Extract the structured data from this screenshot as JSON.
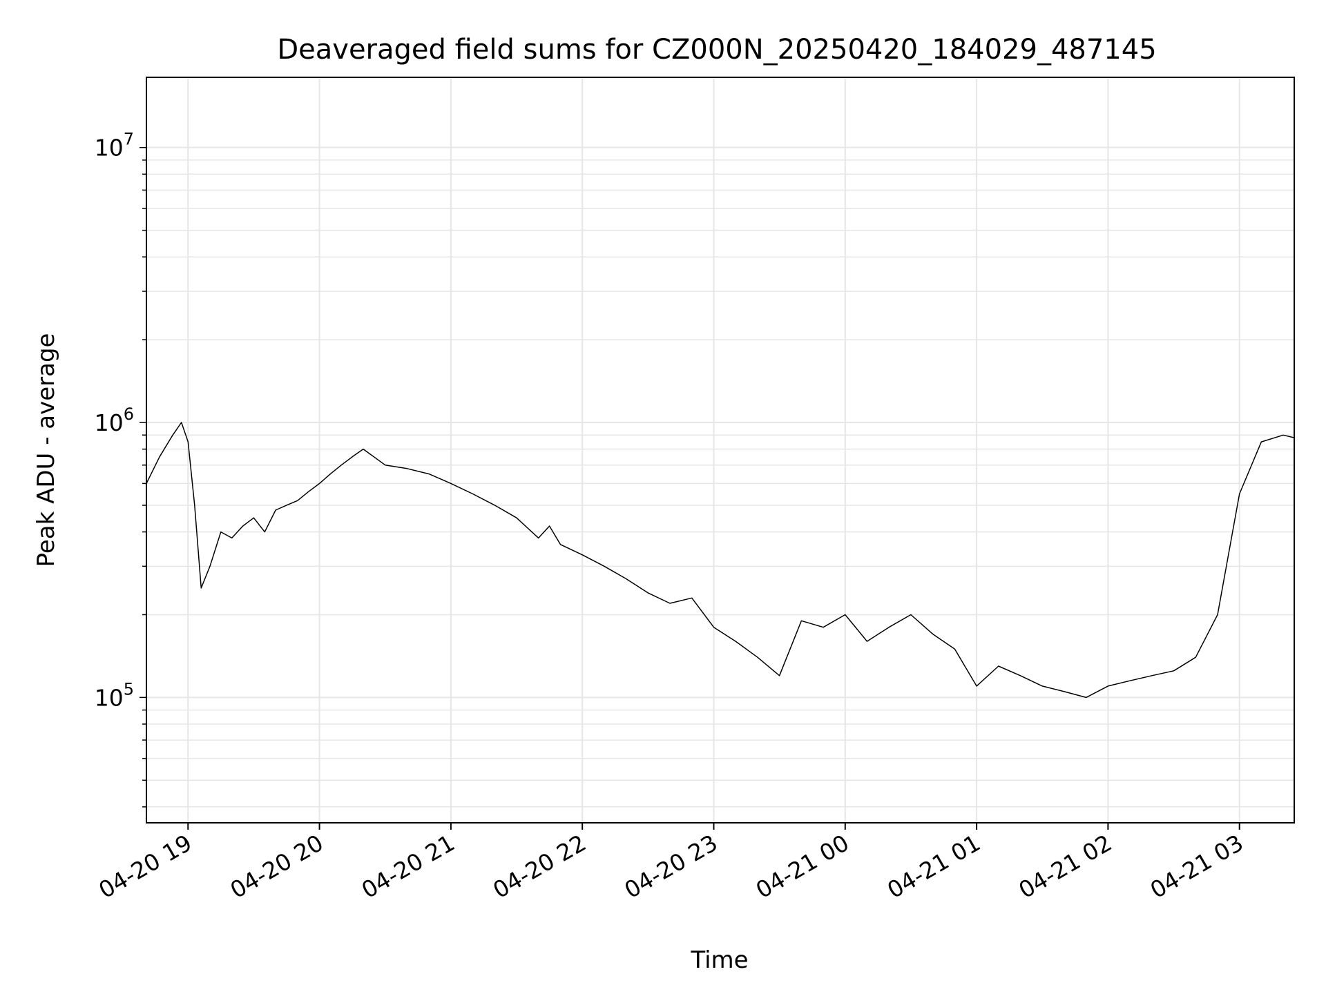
{
  "chart_data": {
    "type": "line",
    "title": "Deaveraged field sums for CZ000N_20250420_184029_487145",
    "xlabel": "Time",
    "ylabel": "Peak ADU - average",
    "y_scale": "log",
    "ylim": [
      35000,
      18000000
    ],
    "xlim": [
      "04-20 18:41",
      "04-21 03:25"
    ],
    "x_ticks": [
      "04-20 19",
      "04-20 20",
      "04-20 21",
      "04-20 22",
      "04-20 23",
      "04-21 00",
      "04-21 01",
      "04-21 02",
      "04-21 03"
    ],
    "y_ticks": [
      {
        "base": "10",
        "exp": "5",
        "value": 100000
      },
      {
        "base": "10",
        "exp": "6",
        "value": 1000000
      },
      {
        "base": "10",
        "exp": "7",
        "value": 10000000
      }
    ],
    "grid": true,
    "line_color": "#000000",
    "series": [
      {
        "x": [
          "04-20 18:41",
          "04-20 18:47",
          "04-20 18:53",
          "04-20 18:57",
          "04-20 19:00",
          "04-20 19:03",
          "04-20 19:06",
          "04-20 19:10",
          "04-20 19:15",
          "04-20 19:20",
          "04-20 19:25",
          "04-20 19:30",
          "04-20 19:35",
          "04-20 19:40",
          "04-20 19:45",
          "04-20 19:50",
          "04-20 19:55",
          "04-20 20:00",
          "04-20 20:05",
          "04-20 20:10",
          "04-20 20:15",
          "04-20 20:20",
          "04-20 20:30",
          "04-20 20:40",
          "04-20 20:50",
          "04-20 21:00",
          "04-20 21:10",
          "04-20 21:20",
          "04-20 21:30",
          "04-20 21:40",
          "04-20 21:45",
          "04-20 21:50",
          "04-20 22:00",
          "04-20 22:10",
          "04-20 22:20",
          "04-20 22:30",
          "04-20 22:40",
          "04-20 22:50",
          "04-20 23:00",
          "04-20 23:10",
          "04-20 23:20",
          "04-20 23:30",
          "04-20 23:40",
          "04-20 23:50",
          "04-21 00:00",
          "04-21 00:10",
          "04-21 00:20",
          "04-21 00:30",
          "04-21 00:40",
          "04-21 00:50",
          "04-21 01:00",
          "04-21 01:10",
          "04-21 01:20",
          "04-21 01:30",
          "04-21 01:40",
          "04-21 01:50",
          "04-21 02:00",
          "04-21 02:10",
          "04-21 02:20",
          "04-21 02:30",
          "04-21 02:40",
          "04-21 02:50",
          "04-21 03:00",
          "04-21 03:10",
          "04-21 03:20",
          "04-21 03:25"
        ],
        "values": [
          600000,
          750000,
          900000,
          1000000,
          850000,
          500000,
          250000,
          300000,
          400000,
          380000,
          420000,
          450000,
          400000,
          480000,
          500000,
          520000,
          560000,
          600000,
          650000,
          700000,
          750000,
          800000,
          700000,
          680000,
          650000,
          600000,
          550000,
          500000,
          450000,
          380000,
          420000,
          360000,
          330000,
          300000,
          270000,
          240000,
          220000,
          230000,
          180000,
          160000,
          140000,
          120000,
          190000,
          180000,
          200000,
          160000,
          180000,
          200000,
          170000,
          150000,
          110000,
          130000,
          120000,
          110000,
          105000,
          100000,
          110000,
          115000,
          120000,
          125000,
          140000,
          200000,
          550000,
          850000,
          900000,
          880000
        ]
      }
    ]
  }
}
